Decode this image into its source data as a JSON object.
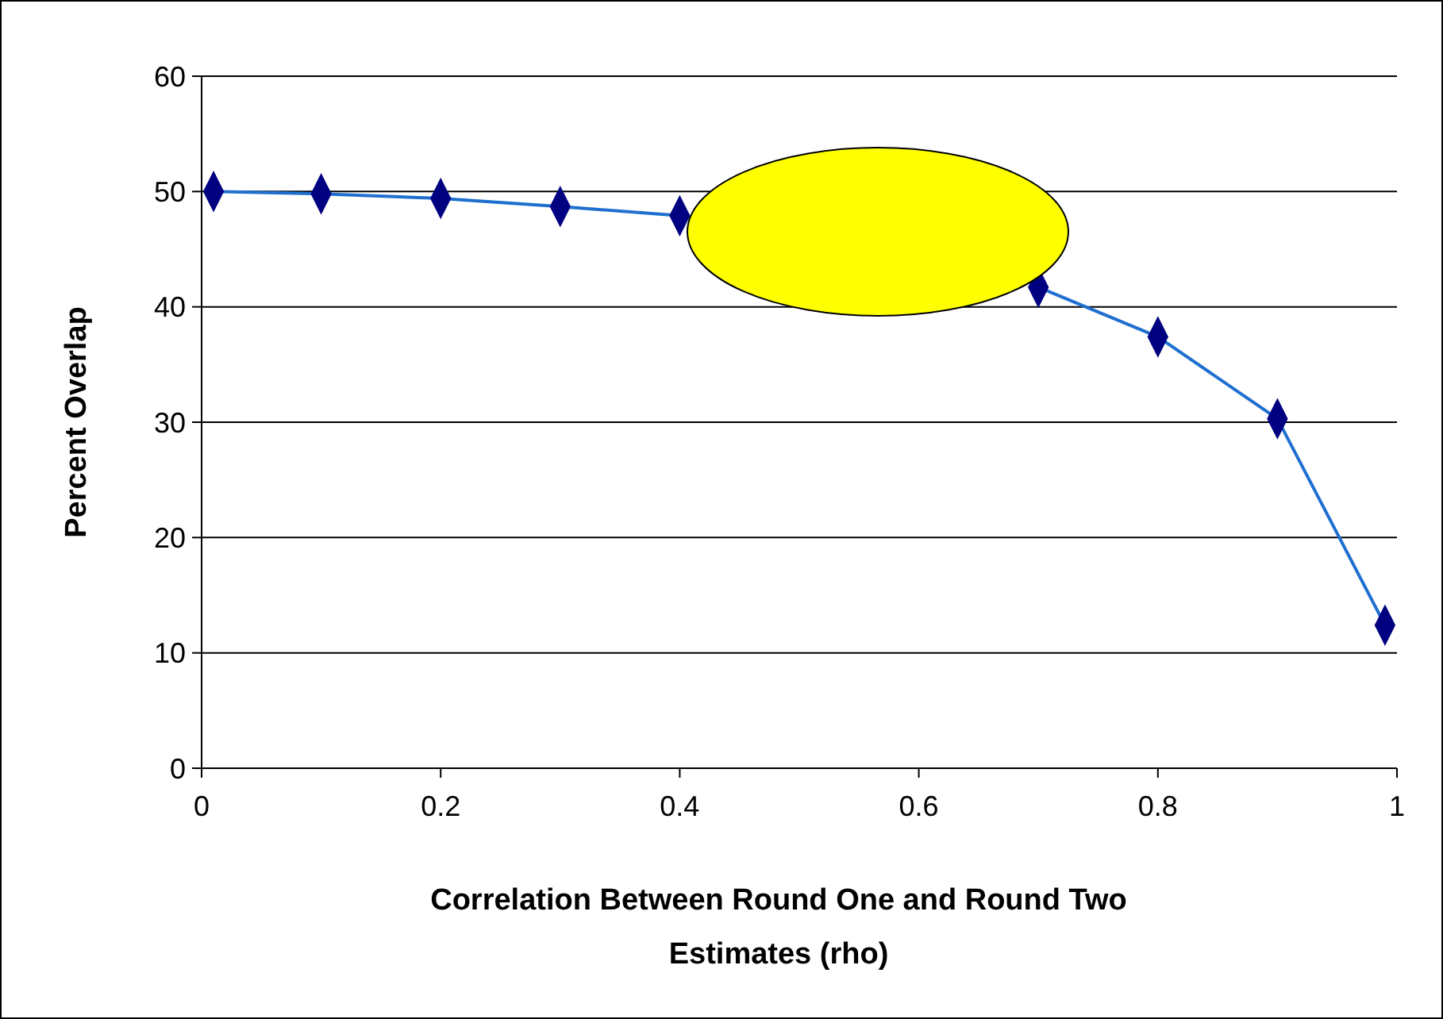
{
  "chart_data": {
    "type": "line",
    "xlabel": "Correlation Between Round One and Round Two Estimates (rho)",
    "ylabel": "Percent Overlap",
    "x": [
      0.01,
      0.1,
      0.2,
      0.3,
      0.4,
      0.5,
      0.6,
      0.7,
      0.8,
      0.9,
      0.99
    ],
    "series": [
      {
        "color": "#1f6fd0",
        "values": [
          50,
          49.8,
          49.4,
          48.7,
          47.9,
          null,
          null,
          41.7,
          37.4,
          30.3,
          12.4
        ]
      }
    ],
    "xlim": [
      0,
      1
    ],
    "xticks": [
      0,
      0.2,
      0.4,
      0.6,
      0.8,
      1
    ],
    "ylim": [
      0,
      60
    ],
    "yticks": [
      0,
      10,
      20,
      30,
      40,
      50,
      60
    ],
    "grid": "y",
    "marker": "diamond",
    "line_style": "solid"
  }
}
